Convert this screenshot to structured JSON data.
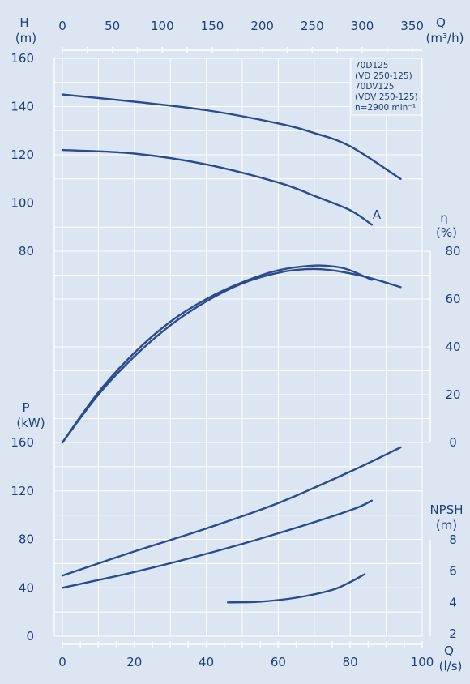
{
  "chart_data": {
    "type": "line",
    "title": "",
    "legend_lines": [
      "70D125",
      "(VD 250-125)",
      "70DV125",
      "(VDV 250-125)",
      "n=2900 min⁻¹"
    ],
    "legend_placement": "top-right",
    "grid": true,
    "x_top": {
      "label_q": "Q",
      "label_unit": "(m³/h)",
      "range": [
        0,
        360
      ],
      "ticks": [
        "0",
        "50",
        "100",
        "150",
        "200",
        "250",
        "300",
        "350"
      ]
    },
    "x_bottom": {
      "label_q": "Q",
      "label_unit": "(l/s)",
      "range": [
        0,
        100
      ],
      "ticks": [
        "0",
        "20",
        "40",
        "60",
        "80",
        "100"
      ]
    },
    "head_axis": {
      "label_h": "H",
      "label_unit": "(m)",
      "range": [
        80,
        160
      ],
      "ticks": [
        "80",
        "100",
        "120",
        "140",
        "160"
      ]
    },
    "eta_axis": {
      "label_eta": "η",
      "label_unit": "(%)",
      "range": [
        0,
        80
      ],
      "ticks": [
        "0",
        "20",
        "40",
        "60",
        "80"
      ]
    },
    "power_axis": {
      "label_p": "P",
      "label_unit": "(kW)",
      "range": [
        0,
        160
      ],
      "ticks": [
        "0",
        "40",
        "80",
        "120",
        "160"
      ]
    },
    "npsh_axis": {
      "label_npsh": "NPSH",
      "label_unit": "(m)",
      "range": [
        2,
        8
      ],
      "ticks": [
        "2",
        "4",
        "6",
        "8"
      ]
    },
    "curve_label_a": "A",
    "series": [
      {
        "group": "head",
        "x": [
          0,
          20,
          40,
          60,
          70,
          80,
          94
        ],
        "y": [
          145,
          142,
          138.5,
          133,
          129,
          123.5,
          110
        ]
      },
      {
        "group": "head",
        "x": [
          0,
          20,
          40,
          60,
          70,
          80,
          86
        ],
        "y": [
          122,
          120.5,
          116,
          108.5,
          103,
          97,
          91
        ]
      },
      {
        "group": "eff",
        "x": [
          0,
          10,
          20,
          30,
          40,
          50,
          60,
          68,
          75,
          85,
          94
        ],
        "y": [
          0,
          20,
          36,
          49,
          59,
          66.5,
          71,
          72.5,
          72,
          69,
          65
        ]
      },
      {
        "group": "eff",
        "x": [
          0,
          10,
          20,
          30,
          40,
          50,
          60,
          70,
          76,
          80,
          86
        ],
        "y": [
          0,
          21,
          37.5,
          50.5,
          60,
          67,
          72,
          74,
          73.5,
          72,
          68
        ]
      },
      {
        "group": "power",
        "x": [
          0,
          20,
          40,
          60,
          80,
          94
        ],
        "y": [
          50,
          70,
          89,
          110,
          136,
          156
        ]
      },
      {
        "group": "power",
        "x": [
          0,
          20,
          40,
          60,
          80,
          86
        ],
        "y": [
          40,
          53,
          68,
          85,
          104,
          112
        ]
      },
      {
        "group": "npsh",
        "x": [
          46,
          55,
          65,
          75,
          80,
          84
        ],
        "y": [
          4.0,
          4.05,
          4.3,
          4.8,
          5.3,
          5.8
        ]
      }
    ]
  }
}
